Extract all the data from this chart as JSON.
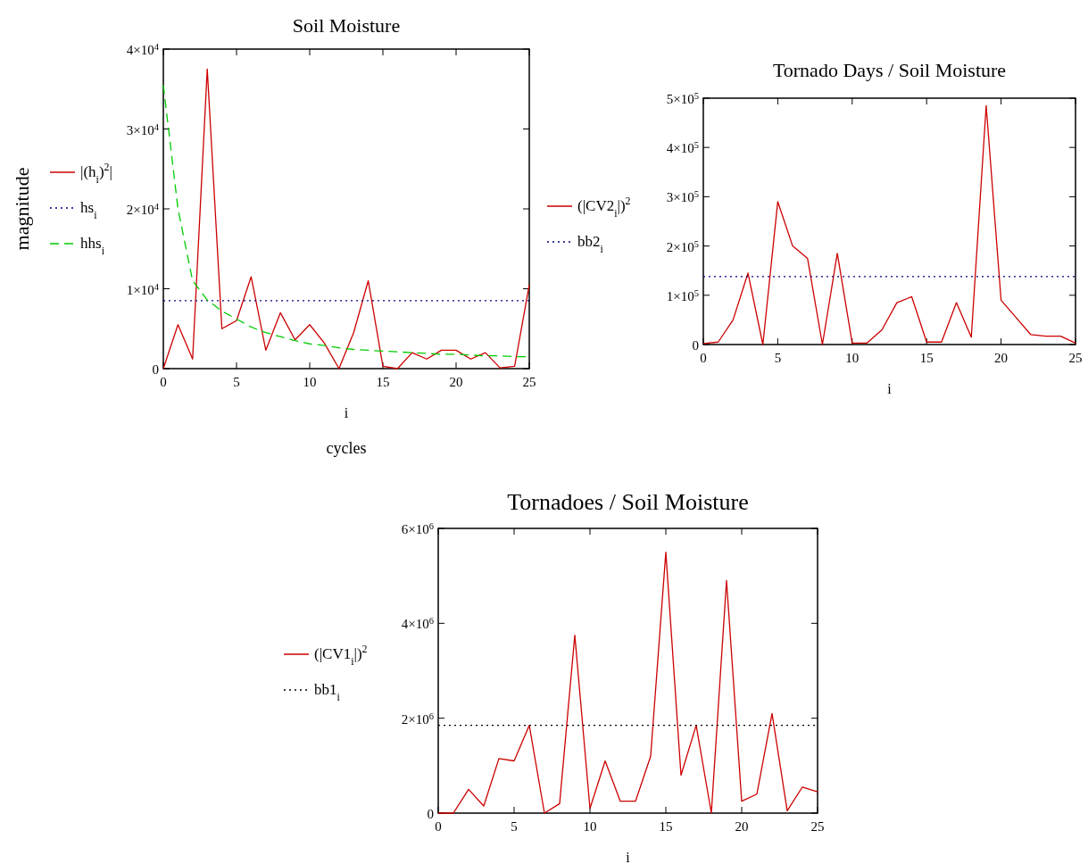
{
  "chart_data": [
    {
      "type": "line",
      "title": "Soil Moisture",
      "xlabel": "i",
      "ylabel": "magnitude",
      "annotations": [
        "cycles"
      ],
      "x": [
        0,
        1,
        2,
        3,
        4,
        5,
        6,
        7,
        8,
        9,
        10,
        11,
        12,
        13,
        14,
        15,
        16,
        17,
        18,
        19,
        20,
        21,
        22,
        23,
        24,
        25
      ],
      "xlim": [
        0,
        25
      ],
      "xticks": [
        0,
        5,
        10,
        15,
        20,
        25
      ],
      "ylim": [
        0,
        40000
      ],
      "yticks": [
        {
          "value": 0,
          "label": "0"
        },
        {
          "value": 10000,
          "label": "1×10$^{4}$"
        },
        {
          "value": 20000,
          "label": "2×10$^{4}$"
        },
        {
          "value": 30000,
          "label": "3×10$^{4}$"
        },
        {
          "value": 40000,
          "label": "4×10$^{4}$"
        }
      ],
      "legend": "left",
      "grid": false,
      "series": [
        {
          "name": "|(h$_{i}$)$^{2}$|",
          "color": "#cc0000",
          "line_style": "solid",
          "values": [
            0,
            5500,
            1200,
            37500,
            5000,
            6000,
            11500,
            2300,
            7000,
            3600,
            5500,
            3200,
            0,
            4500,
            11000,
            300,
            0,
            2000,
            1200,
            2300,
            2300,
            1200,
            2000,
            100,
            300,
            10500
          ]
        },
        {
          "name": "hs$_{i}$",
          "color": "#000080",
          "line_style": "dotted",
          "values": [
            8500,
            8500,
            8500,
            8500,
            8500,
            8500,
            8500,
            8500,
            8500,
            8500,
            8500,
            8500,
            8500,
            8500,
            8500,
            8500,
            8500,
            8500,
            8500,
            8500,
            8500,
            8500,
            8500,
            8500,
            8500,
            8500
          ]
        },
        {
          "name": "hhs$_{i}$",
          "color": "#00cc00",
          "line_style": "dashed",
          "values": [
            35500,
            20000,
            11000,
            8600,
            7200,
            6200,
            5200,
            4500,
            4000,
            3500,
            3100,
            2900,
            2600,
            2400,
            2300,
            2200,
            2100,
            2000,
            1900,
            1800,
            1800,
            1700,
            1600,
            1600,
            1500,
            1500
          ]
        }
      ]
    },
    {
      "type": "line",
      "title": "Tornado Days / Soil Moisture",
      "xlabel": "i",
      "x": [
        0,
        1,
        2,
        3,
        4,
        5,
        6,
        7,
        8,
        9,
        10,
        11,
        12,
        13,
        14,
        15,
        16,
        17,
        18,
        19,
        20,
        21,
        22,
        23,
        24,
        25
      ],
      "xlim": [
        0,
        25
      ],
      "xticks": [
        0,
        5,
        10,
        15,
        20,
        25
      ],
      "ylim": [
        0,
        500000
      ],
      "yticks": [
        {
          "value": 0,
          "label": "0"
        },
        {
          "value": 100000,
          "label": "1×10$^{5}$"
        },
        {
          "value": 200000,
          "label": "2×10$^{5}$"
        },
        {
          "value": 300000,
          "label": "3×10$^{5}$"
        },
        {
          "value": 400000,
          "label": "4×10$^{5}$"
        },
        {
          "value": 500000,
          "label": "5×10$^{5}$"
        }
      ],
      "legend": "left",
      "grid": false,
      "series": [
        {
          "name": "(|CV2$_{i}$|)$^{2}$",
          "color": "#cc0000",
          "line_style": "solid",
          "values": [
            2000,
            5000,
            50000,
            145000,
            0,
            290000,
            200000,
            175000,
            0,
            185000,
            3000,
            3000,
            30000,
            85000,
            97000,
            5000,
            5000,
            85000,
            15000,
            485000,
            90000,
            55000,
            20000,
            17000,
            17000,
            3000
          ]
        },
        {
          "name": "bb2$_{i}$",
          "color": "#000080",
          "line_style": "dotted",
          "values": [
            138000,
            138000,
            138000,
            138000,
            138000,
            138000,
            138000,
            138000,
            138000,
            138000,
            138000,
            138000,
            138000,
            138000,
            138000,
            138000,
            138000,
            138000,
            138000,
            138000,
            138000,
            138000,
            138000,
            138000,
            138000,
            138000
          ]
        }
      ]
    },
    {
      "type": "line",
      "title": "Tornadoes / Soil Moisture",
      "xlabel": "i",
      "x": [
        0,
        1,
        2,
        3,
        4,
        5,
        6,
        7,
        8,
        9,
        10,
        11,
        12,
        13,
        14,
        15,
        16,
        17,
        18,
        19,
        20,
        21,
        22,
        23,
        24,
        25
      ],
      "xlim": [
        0,
        25
      ],
      "xticks": [
        0,
        5,
        10,
        15,
        20,
        25
      ],
      "ylim": [
        0,
        6000000
      ],
      "yticks": [
        {
          "value": 0,
          "label": "0"
        },
        {
          "value": 2000000,
          "label": "2×10$^{6}$"
        },
        {
          "value": 4000000,
          "label": "4×10$^{6}$"
        },
        {
          "value": 6000000,
          "label": "6×10$^{6}$"
        }
      ],
      "legend": "left",
      "grid": false,
      "series": [
        {
          "name": "(|CV1$_{i}$|)$^{2}$",
          "color": "#cc0000",
          "line_style": "solid",
          "values": [
            0,
            0,
            500000,
            150000,
            1150000,
            1100000,
            1850000,
            0,
            200000,
            3750000,
            100000,
            1100000,
            250000,
            250000,
            1200000,
            5500000,
            800000,
            1850000,
            0,
            4900000,
            250000,
            400000,
            2100000,
            50000,
            550000,
            450000
          ]
        },
        {
          "name": "bb1$_{i}$",
          "color": "#000000",
          "line_style": "dotted",
          "values": [
            1850000,
            1850000,
            1850000,
            1850000,
            1850000,
            1850000,
            1850000,
            1850000,
            1850000,
            1850000,
            1850000,
            1850000,
            1850000,
            1850000,
            1850000,
            1850000,
            1850000,
            1850000,
            1850000,
            1850000,
            1850000,
            1850000,
            1850000,
            1850000,
            1850000,
            1850000
          ]
        }
      ]
    }
  ]
}
